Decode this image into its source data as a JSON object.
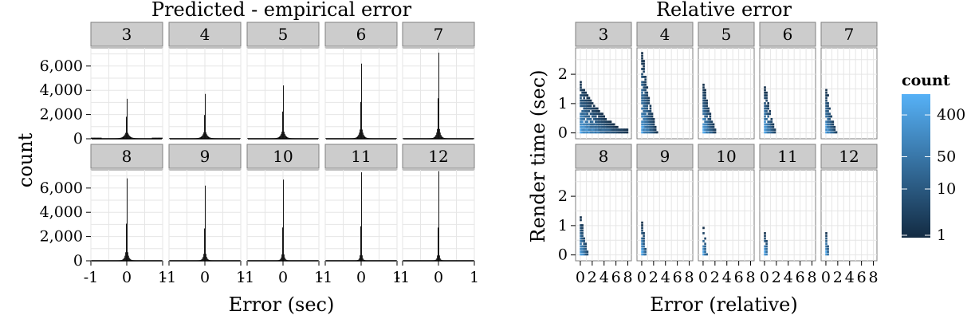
{
  "colors": {
    "panel_bg": "#ffffff",
    "panel_border": "#7f7f7f",
    "grid": "#e6e6e6",
    "strip_bg": "#cccccc",
    "hist_fill": "#000000",
    "count_low": "#132b43",
    "count_high": "#56b1f7"
  },
  "chart_data": [
    {
      "type": "histogram",
      "title": "Predicted - empirical error",
      "xlabel": "Error (sec)",
      "ylabel": "count",
      "facets": [
        "3",
        "4",
        "5",
        "6",
        "7",
        "8",
        "9",
        "10",
        "11",
        "12"
      ],
      "xlim": [
        -1,
        1
      ],
      "ylim": [
        0,
        7500
      ],
      "x_ticks": [
        {
          "value": -1,
          "label": "-1"
        },
        {
          "value": 0,
          "label": "0"
        },
        {
          "value": 1,
          "label": "1"
        }
      ],
      "y_ticks": [
        {
          "value": 0,
          "label": "0"
        },
        {
          "value": 2000,
          "label": "2,000"
        },
        {
          "value": 4000,
          "label": "4,000"
        },
        {
          "value": 6000,
          "label": "6,000"
        }
      ],
      "bin_width": 0.02,
      "peak_counts": [
        3300,
        3700,
        4400,
        6200,
        7100,
        6800,
        6200,
        6700,
        7300,
        7400
      ],
      "grid": true
    },
    {
      "type": "hexbin",
      "title": "Relative error",
      "xlabel": "Error (relative)",
      "ylabel": "Render time (sec)",
      "facets": [
        "3",
        "4",
        "5",
        "6",
        "7",
        "8",
        "9",
        "10",
        "11",
        "12"
      ],
      "xlim": [
        -0.8,
        8.6
      ],
      "ylim": [
        -0.2,
        2.9
      ],
      "x_ticks": [
        {
          "value": 0,
          "label": "0"
        },
        {
          "value": 2,
          "label": "2"
        },
        {
          "value": 4,
          "label": "4"
        },
        {
          "value": 6,
          "label": "6"
        },
        {
          "value": 8,
          "label": "8"
        }
      ],
      "y_ticks": [
        {
          "value": 0,
          "label": "0"
        },
        {
          "value": 1,
          "label": "1"
        },
        {
          "value": 2,
          "label": "2"
        }
      ],
      "max_render_time": [
        1.8,
        2.8,
        1.7,
        1.6,
        1.5,
        1.3,
        1.1,
        0.95,
        0.8,
        0.8
      ],
      "max_relative_error": [
        8.0,
        2.6,
        2.2,
        1.9,
        1.7,
        1.3,
        0.6,
        0.4,
        0.3,
        0.15
      ],
      "legend": {
        "title": "count",
        "scale": "log",
        "position": "right",
        "breaks": [
          {
            "value": 1,
            "label": "1"
          },
          {
            "value": 10,
            "label": "10"
          },
          {
            "value": 50,
            "label": "50"
          },
          {
            "value": 400,
            "label": "400"
          }
        ],
        "max": 1000
      },
      "grid": true
    }
  ]
}
